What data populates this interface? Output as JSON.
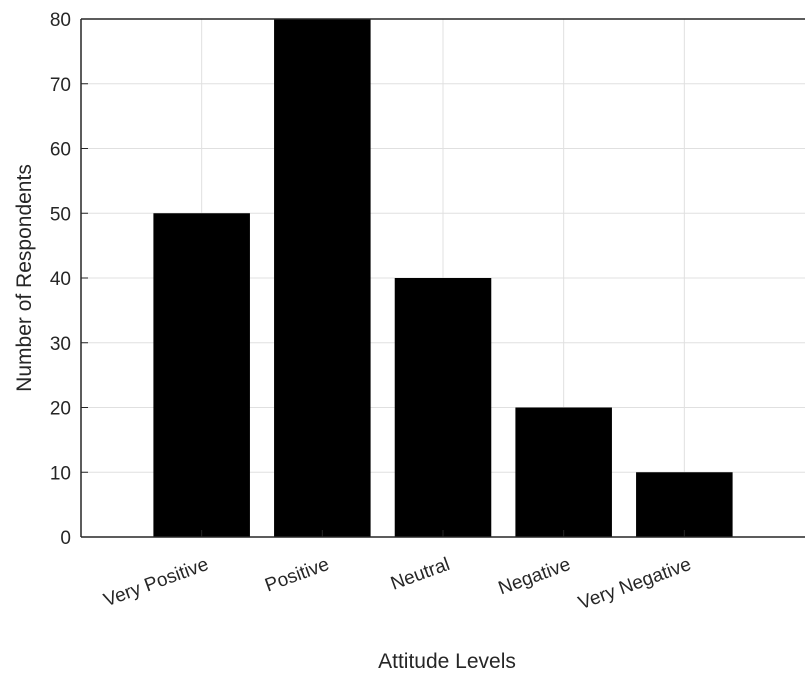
{
  "chart_data": {
    "type": "bar",
    "categories": [
      "Very Positive",
      "Positive",
      "Neutral",
      "Negative",
      "Very Negative"
    ],
    "values": [
      50,
      80,
      40,
      20,
      10
    ],
    "title": "",
    "xlabel": "Attitude Levels",
    "ylabel": "Number of Respondents",
    "ylim": [
      0,
      80
    ],
    "yticks": [
      0,
      10,
      20,
      30,
      40,
      50,
      60,
      70,
      80
    ],
    "grid": true,
    "bar_color": "#000000",
    "grid_color": "#e0e0e0",
    "axis_color": "#262626"
  }
}
